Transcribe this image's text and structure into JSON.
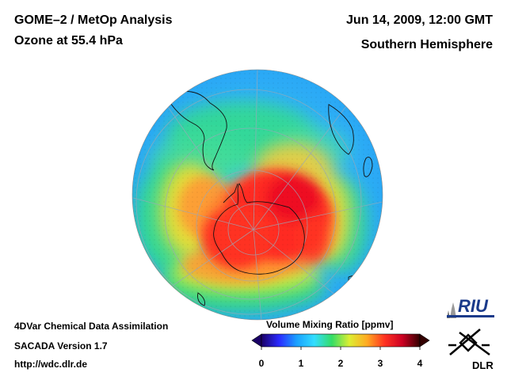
{
  "header": {
    "title_line1": "GOME–2 / MetOp Analysis",
    "title_line2": "Ozone at 55.4 hPa",
    "date": "Jun 14, 2009, 12:00 GMT",
    "region": "Southern Hemisphere"
  },
  "footer": {
    "line1": "4DVar Chemical Data Assimilation",
    "line2": "SACADA Version 1.7",
    "line3": "http://wdc.dlr.de"
  },
  "colorbar": {
    "label": "Volume Mixing Ratio [ppmv]",
    "ticks": [
      "0",
      "1",
      "2",
      "3",
      "4"
    ],
    "range": [
      0,
      4
    ],
    "colors": [
      "#1a0066",
      "#2a2aff",
      "#1aa0ff",
      "#33ddff",
      "#33dd66",
      "#ddee33",
      "#ffaa22",
      "#ff3322",
      "#cc0022",
      "#330000"
    ]
  },
  "map": {
    "projection": "orthographic, south polar",
    "ozone_max_ppmv": 3.6,
    "ozone_min_ppmv": 0.9
  },
  "logos": {
    "riu": "RIU",
    "dlr": "DLR"
  }
}
